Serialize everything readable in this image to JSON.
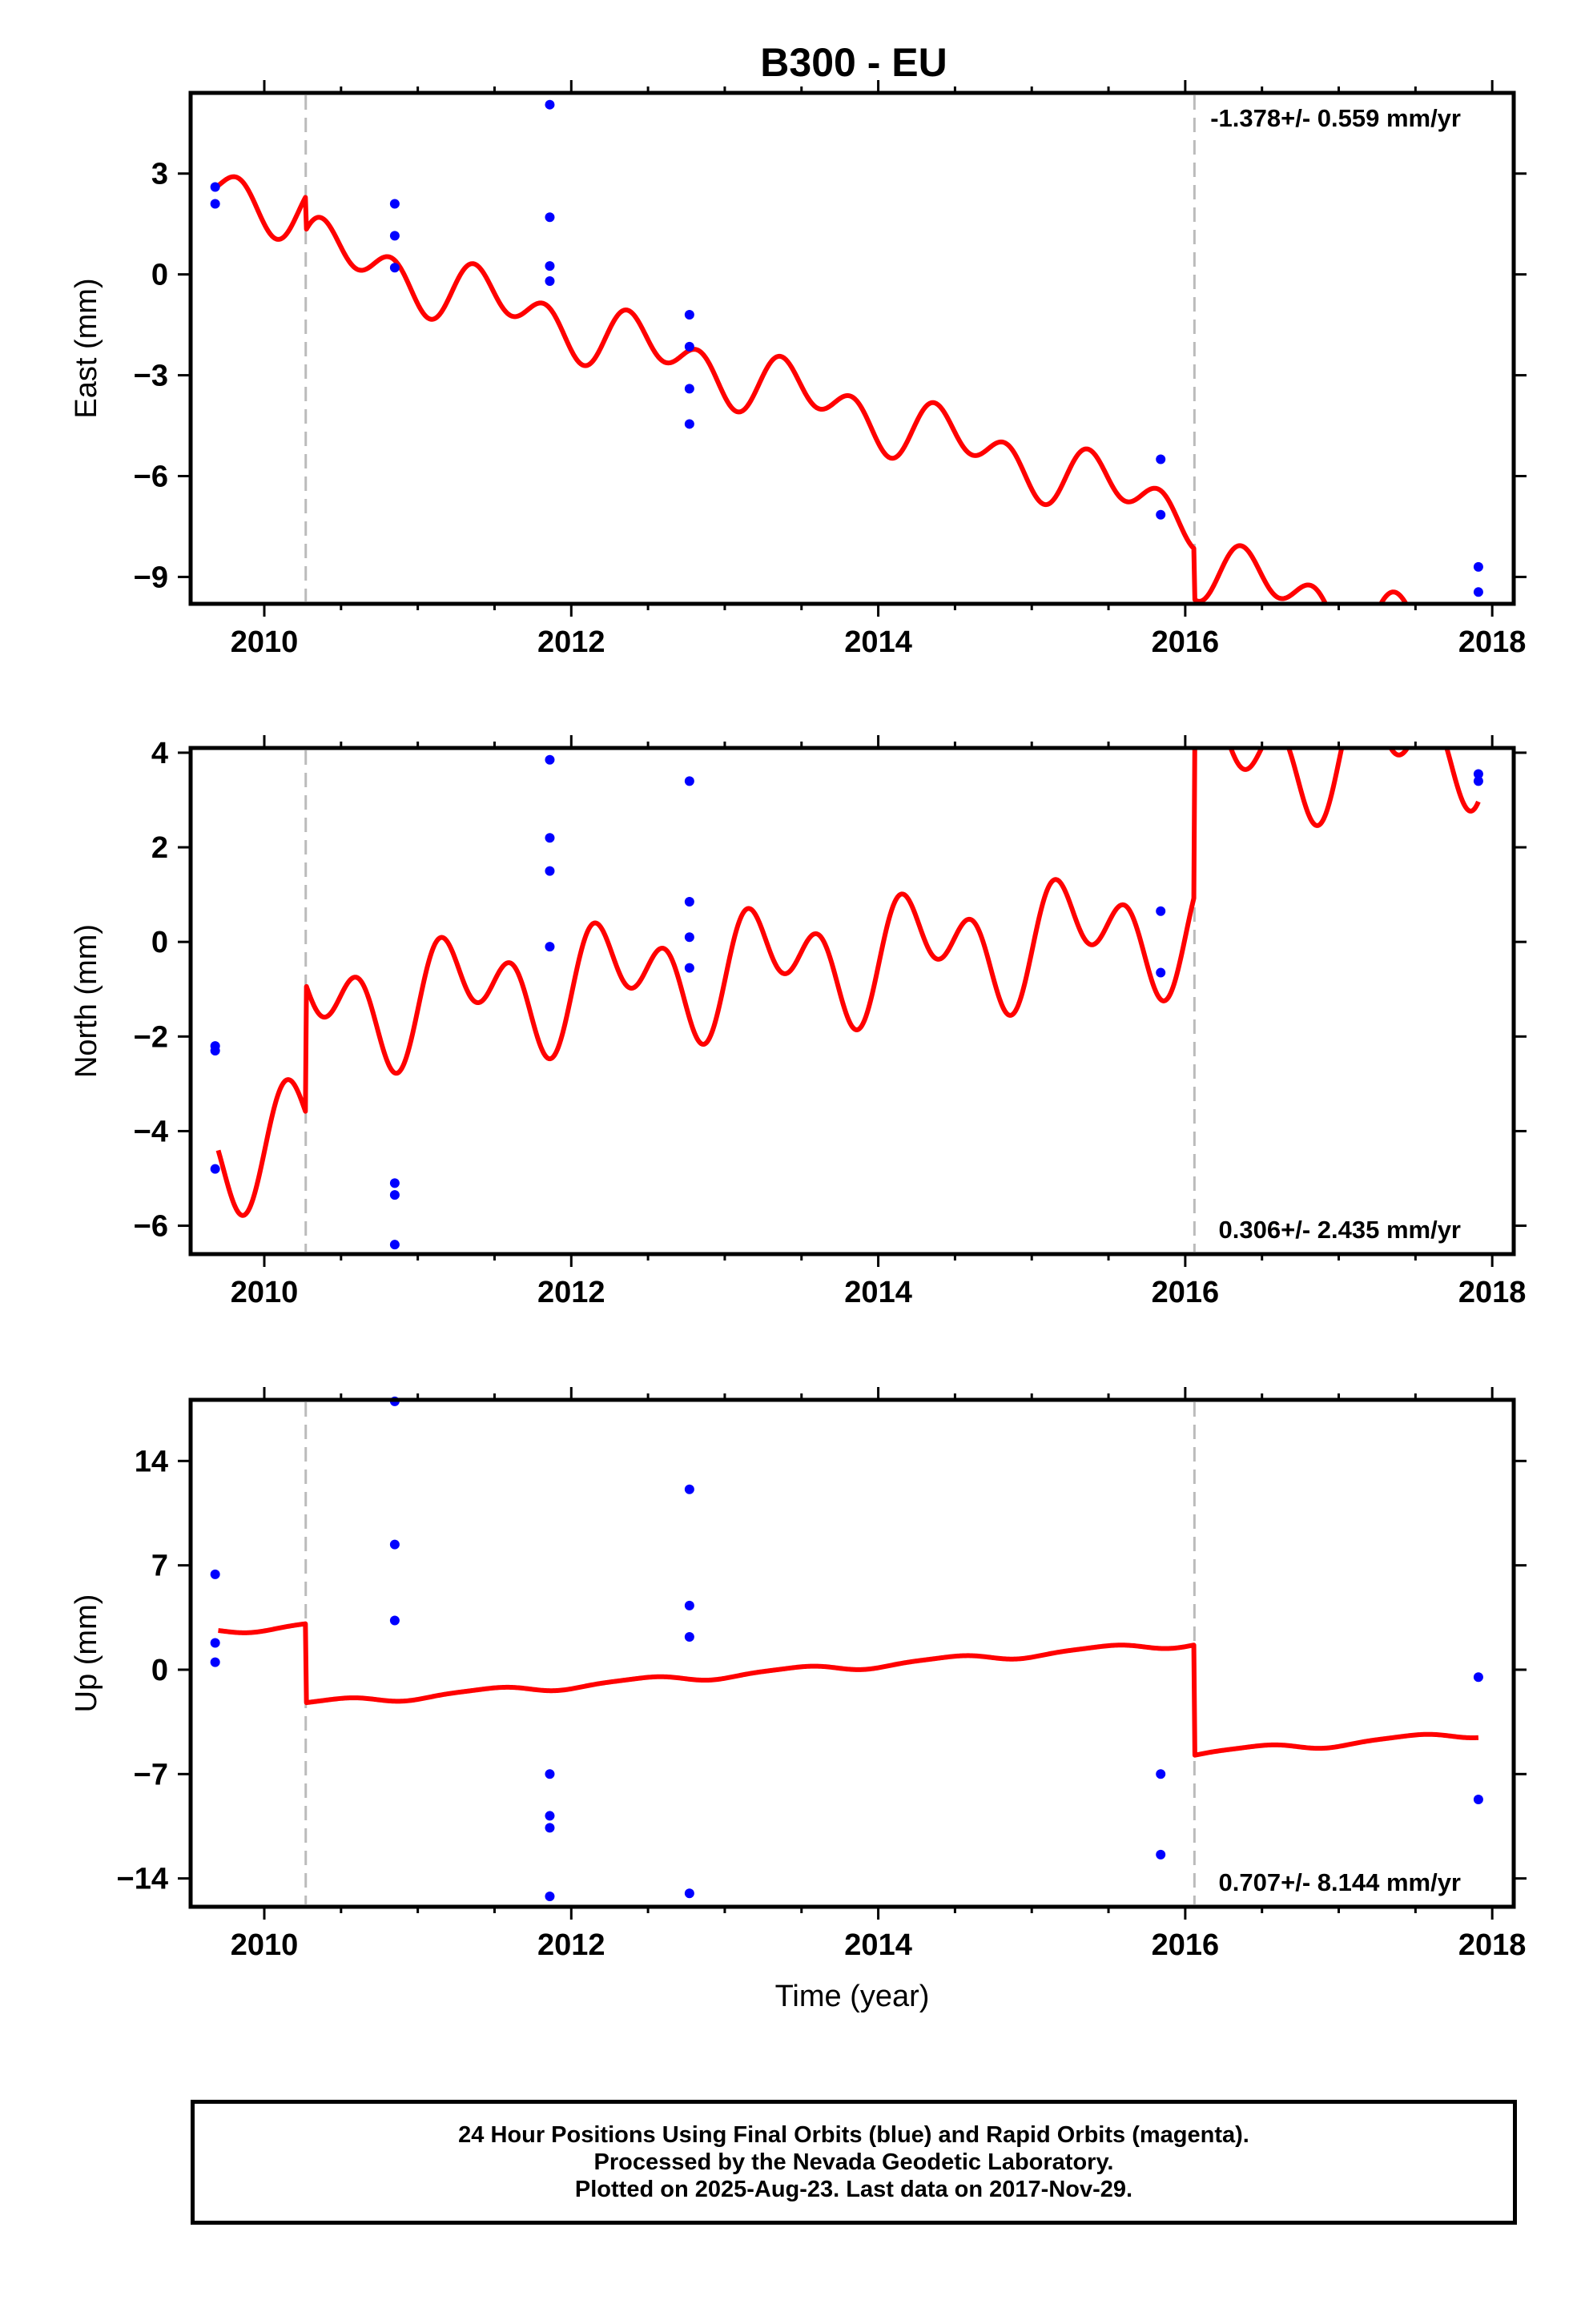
{
  "title": "B300 - EU",
  "colors": {
    "model": "#ff0000",
    "final_orbits": "#0000ff",
    "offset_line": "#bbbbbb",
    "axis": "#000000"
  },
  "chart_data": [
    {
      "id": "east",
      "type": "scatter",
      "ylabel": "East (mm)",
      "xlabel": "",
      "xlim": [
        2009.52,
        2018.14
      ],
      "ylim": [
        -9.8,
        5.4
      ],
      "xticks": [
        2010,
        2012,
        2014,
        2016,
        2018
      ],
      "yticks": [
        -9,
        -6,
        -3,
        0,
        3
      ],
      "ytick_labels": [
        "−9",
        "−6",
        "−3",
        "0",
        "3"
      ],
      "rate_text": "-1.378+/- 0.559 mm/yr",
      "rate_position": "top-right",
      "offsets": [
        2010.27,
        2016.06
      ],
      "points": [
        [
          2009.68,
          2.6
        ],
        [
          2009.68,
          2.1
        ],
        [
          2010.85,
          2.1
        ],
        [
          2010.85,
          1.15
        ],
        [
          2010.85,
          0.2
        ],
        [
          2011.86,
          5.05
        ],
        [
          2011.86,
          1.7
        ],
        [
          2011.86,
          0.25
        ],
        [
          2011.86,
          -0.2
        ],
        [
          2012.77,
          -1.2
        ],
        [
          2012.77,
          -2.15
        ],
        [
          2012.77,
          -3.4
        ],
        [
          2012.77,
          -4.45
        ],
        [
          2015.84,
          -5.5
        ],
        [
          2015.84,
          -7.15
        ],
        [
          2017.91,
          -8.7
        ],
        [
          2017.91,
          -9.45
        ]
      ],
      "model": {
        "t0": 2009.7,
        "t_end": 2017.91,
        "intercept": 2.65,
        "rate": -1.378,
        "annual_amp": 0.5,
        "annual_phase": 0.25,
        "semiannual_amp": 0.65,
        "semiannual_phase": 0.22,
        "steps": [
          [
            2010.27,
            -1.0
          ],
          [
            2016.06,
            -1.5
          ]
        ]
      }
    },
    {
      "id": "north",
      "type": "scatter",
      "ylabel": "North (mm)",
      "xlabel": "",
      "xlim": [
        2009.52,
        2018.14
      ],
      "ylim": [
        -6.6,
        4.1
      ],
      "xticks": [
        2010,
        2012,
        2014,
        2016,
        2018
      ],
      "yticks": [
        -6,
        -4,
        -2,
        0,
        2,
        4
      ],
      "ytick_labels": [
        "−6",
        "−4",
        "−2",
        "0",
        "2",
        "4"
      ],
      "rate_text": "0.306+/- 2.435 mm/yr",
      "rate_position": "bottom-right",
      "offsets": [
        2010.27,
        2016.06
      ],
      "points": [
        [
          2009.68,
          -2.2
        ],
        [
          2009.68,
          -2.3
        ],
        [
          2009.68,
          -4.8
        ],
        [
          2010.85,
          -5.1
        ],
        [
          2010.85,
          -5.35
        ],
        [
          2010.85,
          -6.4
        ],
        [
          2011.86,
          3.85
        ],
        [
          2011.86,
          2.2
        ],
        [
          2011.86,
          1.5
        ],
        [
          2011.86,
          -0.1
        ],
        [
          2012.77,
          3.4
        ],
        [
          2012.77,
          0.85
        ],
        [
          2012.77,
          0.1
        ],
        [
          2012.77,
          -0.55
        ],
        [
          2015.84,
          0.65
        ],
        [
          2015.84,
          -0.65
        ],
        [
          2017.91,
          3.55
        ],
        [
          2017.91,
          3.4
        ]
      ],
      "model": {
        "t0": 2009.7,
        "t_end": 2017.91,
        "intercept": -4.3,
        "rate": 0.306,
        "annual_amp": 0.75,
        "annual_phase": 0.05,
        "semiannual_amp": 0.85,
        "semiannual_phase": 0.0,
        "steps": [
          [
            2010.27,
            2.7
          ],
          [
            2016.06,
            3.4
          ]
        ]
      }
    },
    {
      "id": "up",
      "type": "scatter",
      "ylabel": "Up (mm)",
      "xlabel": "Time (year)",
      "xlim": [
        2009.52,
        2018.14
      ],
      "ylim": [
        -15.9,
        18.1
      ],
      "xticks": [
        2010,
        2012,
        2014,
        2016,
        2018
      ],
      "yticks": [
        -14,
        -7,
        0,
        7,
        14
      ],
      "ytick_labels": [
        "−14",
        "−7",
        "0",
        "7",
        "14"
      ],
      "rate_text": "0.707+/- 8.144 mm/yr",
      "rate_position": "bottom-right",
      "offsets": [
        2010.27,
        2016.06
      ],
      "points": [
        [
          2009.68,
          6.4
        ],
        [
          2009.68,
          1.8
        ],
        [
          2009.68,
          0.5
        ],
        [
          2010.85,
          18.0
        ],
        [
          2010.85,
          8.4
        ],
        [
          2010.85,
          3.3
        ],
        [
          2011.86,
          -7.0
        ],
        [
          2011.86,
          -9.8
        ],
        [
          2011.86,
          -10.6
        ],
        [
          2011.86,
          -15.2
        ],
        [
          2012.77,
          12.1
        ],
        [
          2012.77,
          4.3
        ],
        [
          2012.77,
          2.2
        ],
        [
          2012.77,
          -15.0
        ],
        [
          2015.84,
          -7.0
        ],
        [
          2015.84,
          -12.4
        ],
        [
          2017.91,
          -0.5
        ],
        [
          2017.91,
          -8.7
        ]
      ],
      "model": {
        "t0": 2009.7,
        "t_end": 2017.91,
        "intercept": 2.6,
        "rate": 0.707,
        "annual_amp": 0.22,
        "annual_phase": 0.2,
        "semiannual_amp": 0.05,
        "semiannual_phase": 0.0,
        "steps": [
          [
            2010.27,
            -5.3
          ],
          [
            2016.06,
            -7.4
          ]
        ]
      }
    }
  ],
  "caption": {
    "line1": "24 Hour Positions Using Final Orbits (blue) and Rapid Orbits (magenta).",
    "line2": "Processed by the Nevada Geodetic Laboratory.",
    "line3": "Plotted on 2025-Aug-23. Last data on 2017-Nov-29."
  }
}
